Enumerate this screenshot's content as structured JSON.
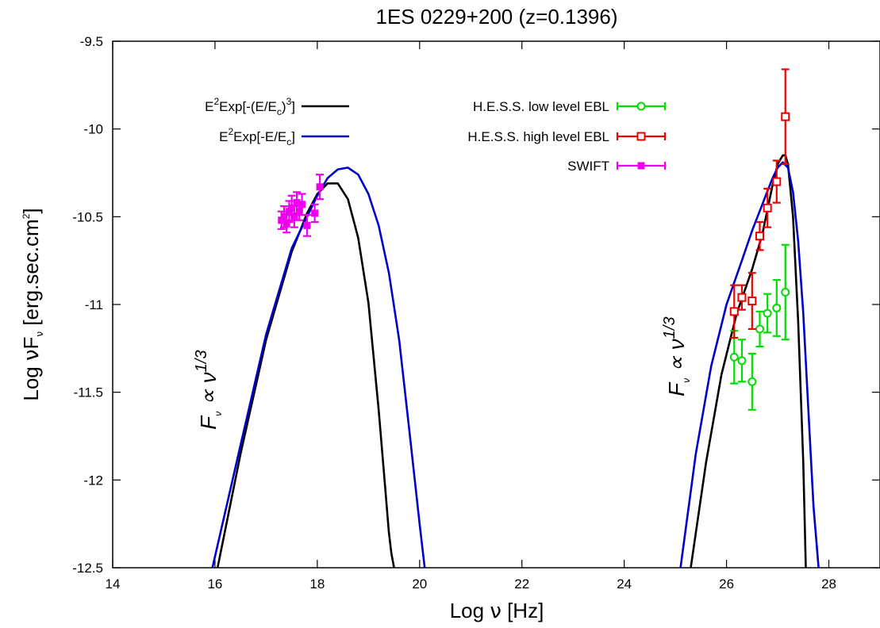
{
  "chart_data": {
    "type": "scatter",
    "title": "1ES 0229+200 (z=0.1396)",
    "xlabel": "Log ν [Hz]",
    "ylabel": "Log νF_ν [erg.sec.cm^2]",
    "xlim": [
      14,
      29
    ],
    "ylim": [
      -12.5,
      -9.5
    ],
    "x_ticks": [
      "14",
      "16",
      "18",
      "20",
      "22",
      "24",
      "26",
      "28"
    ],
    "y_ticks": [
      "-9.5",
      "-10",
      "-10.5",
      "-11",
      "-11.5",
      "-12",
      "-12.5"
    ],
    "grid": false,
    "legend_left": [
      {
        "label": "E^2Exp[-(E/E_c)^3]",
        "color": "#000000"
      },
      {
        "label": "E^2Exp[-E/E_c]",
        "color": "#0000cc"
      }
    ],
    "legend_right_location": "top-right",
    "annotations": [
      "F_ν ∝ ν^(1/3)",
      "F_ν ∝ ν^(1/3)"
    ],
    "model_curves": [
      {
        "label": "E^2Exp[-(E/E_c)^3]",
        "color": "#000000",
        "segments": [
          {
            "x": [
              16.05,
              16.5,
              17.0,
              17.5,
              17.8,
              18.0,
              18.2,
              18.4,
              18.6,
              18.8,
              19.0,
              19.2,
              19.3,
              19.4,
              19.45,
              19.5
            ],
            "y": [
              -12.5,
              -11.85,
              -11.2,
              -10.7,
              -10.48,
              -10.37,
              -10.31,
              -10.31,
              -10.4,
              -10.62,
              -10.99,
              -11.6,
              -11.95,
              -12.3,
              -12.42,
              -12.5
            ]
          },
          {
            "x": [
              25.3,
              25.6,
              25.9,
              26.2,
              26.5,
              26.7,
              26.9,
              27.0,
              27.1,
              27.15,
              27.2,
              27.3,
              27.4,
              27.5,
              27.55
            ],
            "y": [
              -12.5,
              -11.9,
              -11.4,
              -11.05,
              -10.8,
              -10.6,
              -10.32,
              -10.2,
              -10.15,
              -10.15,
              -10.2,
              -10.5,
              -11.1,
              -11.9,
              -12.5
            ]
          }
        ]
      },
      {
        "label": "E^2Exp[-E/E_c]",
        "color": "#0000cc",
        "segments": [
          {
            "x": [
              15.95,
              16.5,
              17.0,
              17.5,
              18.0,
              18.2,
              18.4,
              18.6,
              18.8,
              19.0,
              19.2,
              19.4,
              19.6,
              19.8,
              20.0,
              20.1
            ],
            "y": [
              -12.5,
              -11.8,
              -11.17,
              -10.68,
              -10.38,
              -10.28,
              -10.23,
              -10.22,
              -10.26,
              -10.37,
              -10.55,
              -10.82,
              -11.2,
              -11.72,
              -12.25,
              -12.5
            ]
          },
          {
            "x": [
              25.1,
              25.4,
              25.7,
              26.0,
              26.3,
              26.5,
              26.7,
              26.9,
              27.0,
              27.1,
              27.2,
              27.3,
              27.4,
              27.5,
              27.6,
              27.7,
              27.8
            ],
            "y": [
              -12.5,
              -11.85,
              -11.35,
              -11.0,
              -10.75,
              -10.58,
              -10.43,
              -10.28,
              -10.22,
              -10.19,
              -10.22,
              -10.36,
              -10.64,
              -11.05,
              -11.6,
              -12.15,
              -12.5
            ]
          }
        ]
      }
    ],
    "series": [
      {
        "name": "H.E.S.S. low level EBL",
        "color": "#00dd00",
        "marker": "circle",
        "x": [
          26.15,
          26.3,
          26.5,
          26.65,
          26.8,
          26.98,
          27.15
        ],
        "y": [
          -11.3,
          -11.32,
          -11.44,
          -11.14,
          -11.05,
          -11.02,
          -10.93
        ],
        "yerr": [
          0.15,
          0.12,
          0.16,
          0.1,
          0.11,
          0.16,
          0.27
        ]
      },
      {
        "name": "H.E.S.S. high level EBL",
        "color": "#ee0000",
        "marker": "square",
        "x": [
          26.15,
          26.3,
          26.5,
          26.65,
          26.8,
          26.98,
          27.15
        ],
        "y": [
          -11.04,
          -10.96,
          -10.98,
          -10.61,
          -10.45,
          -10.3,
          -9.93
        ],
        "yerr": [
          0.15,
          0.07,
          0.16,
          0.08,
          0.11,
          0.12,
          0.27
        ]
      },
      {
        "name": "SWIFT",
        "color": "#ee00ee",
        "marker": "filled-square",
        "x": [
          17.3,
          17.35,
          17.4,
          17.45,
          17.5,
          17.55,
          17.6,
          17.65,
          17.7,
          17.8,
          17.95,
          18.05
        ],
        "y": [
          -10.52,
          -10.5,
          -10.54,
          -10.47,
          -10.45,
          -10.5,
          -10.42,
          -10.47,
          -10.43,
          -10.55,
          -10.48,
          -10.33
        ],
        "yerr": [
          0.05,
          0.06,
          0.05,
          0.06,
          0.07,
          0.06,
          0.06,
          0.05,
          0.06,
          0.06,
          0.05,
          0.07
        ]
      }
    ]
  }
}
